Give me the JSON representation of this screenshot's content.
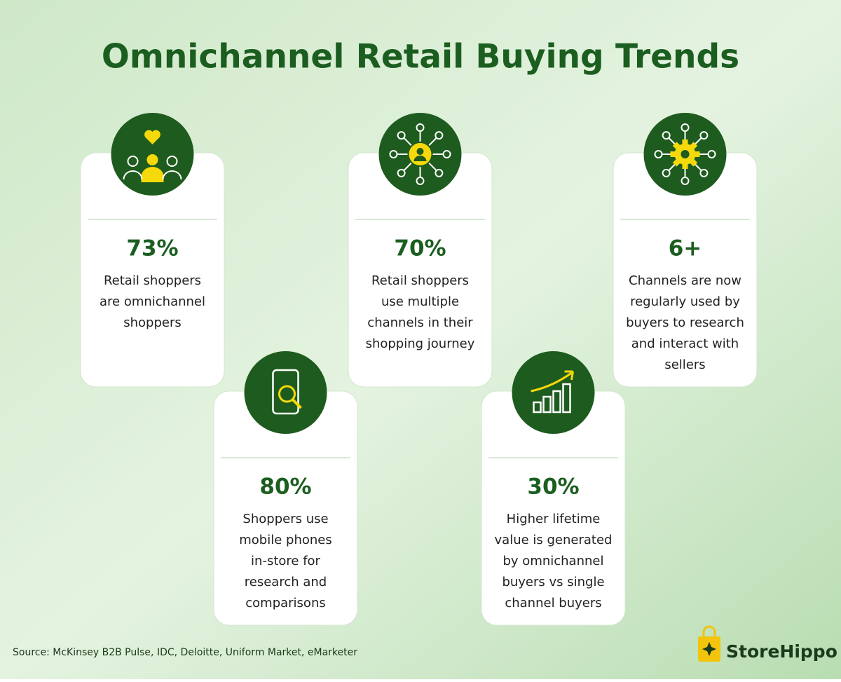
{
  "title": "Omnichannel Retail Buying Trends",
  "cards": [
    {
      "stat": "73%",
      "lines": [
        "Retail shoppers",
        "are omnichannel",
        "shoppers"
      ]
    },
    {
      "stat": "80%",
      "lines": [
        "Shoppers use",
        "mobile phones",
        "in-store for",
        "research and",
        "comparisons"
      ]
    },
    {
      "stat": "70%",
      "lines": [
        "Retail shoppers",
        "use multiple",
        "channels in their",
        "shopping journey"
      ]
    },
    {
      "stat": "30%",
      "lines": [
        "Higher lifetime",
        "value is generated",
        "by omnichannel",
        "buyers vs single",
        "channel buyers"
      ]
    },
    {
      "stat": "6+",
      "lines": [
        "Channels are now",
        "regularly used by",
        "buyers to research",
        "and interact with",
        "sellers"
      ]
    }
  ],
  "source": "Source: McKinsey B2B Pulse, IDC, Deloitte,  Uniform Market, eMarketer",
  "brand": "StoreHippo"
}
